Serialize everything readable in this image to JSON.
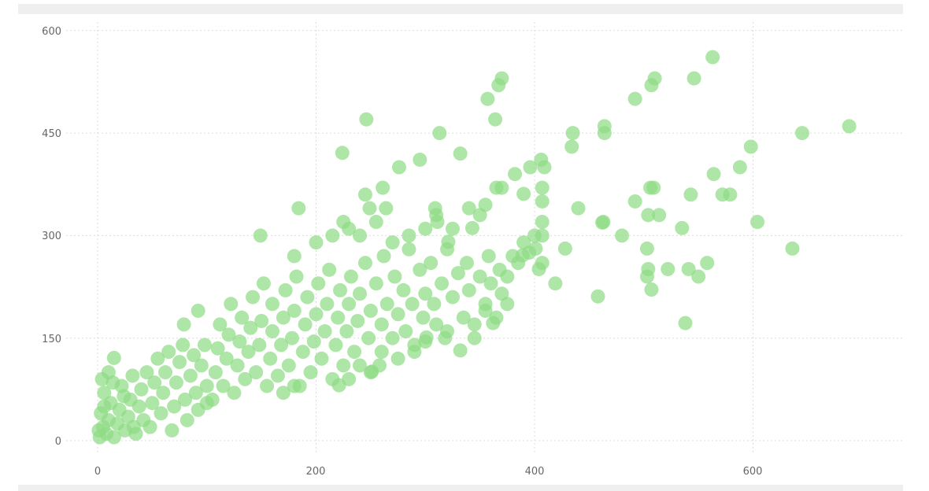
{
  "chart_data": {
    "type": "scatter",
    "title": "",
    "xlabel": "",
    "ylabel": "",
    "xlim": [
      0,
      730
    ],
    "ylim": [
      0,
      610
    ],
    "x_ticks": [
      "0",
      "200",
      "400",
      "600"
    ],
    "y_ticks": [
      "0",
      "150",
      "300",
      "450",
      "600"
    ],
    "grid": true,
    "point_color": "#8fdc85",
    "points": [
      [
        2,
        5
      ],
      [
        5,
        20
      ],
      [
        3,
        40
      ],
      [
        8,
        10
      ],
      [
        10,
        30
      ],
      [
        12,
        55
      ],
      [
        6,
        70
      ],
      [
        15,
        5
      ],
      [
        18,
        25
      ],
      [
        20,
        45
      ],
      [
        22,
        80
      ],
      [
        25,
        15
      ],
      [
        28,
        35
      ],
      [
        30,
        60
      ],
      [
        32,
        95
      ],
      [
        35,
        10
      ],
      [
        38,
        50
      ],
      [
        40,
        75
      ],
      [
        42,
        30
      ],
      [
        45,
        100
      ],
      [
        4,
        90
      ],
      [
        10,
        100
      ],
      [
        15,
        121
      ],
      [
        1,
        15
      ],
      [
        6,
        50
      ],
      [
        14,
        85
      ],
      [
        24,
        65
      ],
      [
        33,
        20
      ],
      [
        48,
        20
      ],
      [
        50,
        55
      ],
      [
        52,
        85
      ],
      [
        55,
        120
      ],
      [
        58,
        40
      ],
      [
        60,
        70
      ],
      [
        62,
        100
      ],
      [
        65,
        130
      ],
      [
        68,
        15
      ],
      [
        70,
        50
      ],
      [
        72,
        85
      ],
      [
        75,
        115
      ],
      [
        78,
        140
      ],
      [
        80,
        60
      ],
      [
        82,
        30
      ],
      [
        85,
        95
      ],
      [
        88,
        125
      ],
      [
        90,
        70
      ],
      [
        92,
        45
      ],
      [
        95,
        110
      ],
      [
        98,
        140
      ],
      [
        100,
        80
      ],
      [
        100,
        55
      ],
      [
        92,
        190
      ],
      [
        79,
        170
      ],
      [
        105,
        60
      ],
      [
        108,
        100
      ],
      [
        110,
        135
      ],
      [
        112,
        170
      ],
      [
        115,
        80
      ],
      [
        118,
        120
      ],
      [
        120,
        155
      ],
      [
        122,
        200
      ],
      [
        125,
        70
      ],
      [
        128,
        110
      ],
      [
        130,
        145
      ],
      [
        132,
        180
      ],
      [
        135,
        90
      ],
      [
        138,
        130
      ],
      [
        140,
        165
      ],
      [
        142,
        210
      ],
      [
        145,
        100
      ],
      [
        148,
        140
      ],
      [
        150,
        175
      ],
      [
        152,
        230
      ],
      [
        155,
        80
      ],
      [
        158,
        120
      ],
      [
        160,
        160
      ],
      [
        160,
        200
      ],
      [
        165,
        95
      ],
      [
        168,
        140
      ],
      [
        170,
        180
      ],
      [
        172,
        220
      ],
      [
        175,
        110
      ],
      [
        178,
        150
      ],
      [
        180,
        190
      ],
      [
        182,
        240
      ],
      [
        185,
        80
      ],
      [
        188,
        130
      ],
      [
        190,
        170
      ],
      [
        192,
        210
      ],
      [
        195,
        100
      ],
      [
        198,
        145
      ],
      [
        200,
        185
      ],
      [
        202,
        230
      ],
      [
        205,
        120
      ],
      [
        208,
        160
      ],
      [
        210,
        200
      ],
      [
        212,
        250
      ],
      [
        215,
        90
      ],
      [
        218,
        140
      ],
      [
        220,
        180
      ],
      [
        222,
        220
      ],
      [
        225,
        110
      ],
      [
        228,
        160
      ],
      [
        230,
        200
      ],
      [
        232,
        240
      ],
      [
        235,
        130
      ],
      [
        238,
        175
      ],
      [
        240,
        215
      ],
      [
        245,
        260
      ],
      [
        248,
        150
      ],
      [
        250,
        190
      ],
      [
        255,
        230
      ],
      [
        258,
        110
      ],
      [
        260,
        170
      ],
      [
        262,
        270
      ],
      [
        265,
        200
      ],
      [
        270,
        150
      ],
      [
        272,
        240
      ],
      [
        275,
        185
      ],
      [
        280,
        220
      ],
      [
        282,
        160
      ],
      [
        285,
        280
      ],
      [
        288,
        200
      ],
      [
        290,
        140
      ],
      [
        295,
        250
      ],
      [
        298,
        180
      ],
      [
        300,
        215
      ],
      [
        305,
        260
      ],
      [
        308,
        200
      ],
      [
        310,
        170
      ],
      [
        315,
        230
      ],
      [
        318,
        150
      ],
      [
        320,
        280
      ],
      [
        325,
        210
      ],
      [
        330,
        245
      ],
      [
        335,
        180
      ],
      [
        338,
        260
      ],
      [
        340,
        220
      ],
      [
        345,
        170
      ],
      [
        350,
        240
      ],
      [
        355,
        200
      ],
      [
        358,
        270
      ],
      [
        360,
        230
      ],
      [
        365,
        180
      ],
      [
        368,
        250
      ],
      [
        370,
        215
      ],
      [
        375,
        240
      ],
      [
        380,
        270
      ],
      [
        385,
        260
      ],
      [
        390,
        290
      ],
      [
        395,
        275
      ],
      [
        400,
        300
      ],
      [
        240,
        300
      ],
      [
        255,
        320
      ],
      [
        270,
        290
      ],
      [
        285,
        300
      ],
      [
        300,
        310
      ],
      [
        310,
        330
      ],
      [
        325,
        310
      ],
      [
        340,
        340
      ],
      [
        350,
        330
      ],
      [
        355,
        345
      ],
      [
        180,
        270
      ],
      [
        200,
        290
      ],
      [
        215,
        300
      ],
      [
        225,
        320
      ],
      [
        230,
        310
      ],
      [
        311,
        320
      ],
      [
        309,
        340
      ],
      [
        321,
        291
      ],
      [
        343,
        311
      ],
      [
        230,
        90
      ],
      [
        240,
        110
      ],
      [
        250,
        100
      ],
      [
        260,
        130
      ],
      [
        275,
        120
      ],
      [
        290,
        130
      ],
      [
        300,
        145
      ],
      [
        320,
        160
      ],
      [
        332,
        132
      ],
      [
        345,
        150
      ],
      [
        362,
        172
      ],
      [
        355,
        190
      ],
      [
        375,
        200
      ],
      [
        170,
        70
      ],
      [
        180,
        80
      ],
      [
        301,
        151
      ],
      [
        251,
        101
      ],
      [
        221,
        81
      ],
      [
        149,
        300
      ],
      [
        184,
        340
      ],
      [
        245,
        360
      ],
      [
        261,
        370
      ],
      [
        264,
        340
      ],
      [
        249,
        340
      ],
      [
        224,
        421
      ],
      [
        246,
        470
      ],
      [
        276,
        400
      ],
      [
        295,
        411
      ],
      [
        313,
        450
      ],
      [
        332,
        420
      ],
      [
        357,
        500
      ],
      [
        364,
        470
      ],
      [
        367,
        520
      ],
      [
        370,
        530
      ],
      [
        365,
        370
      ],
      [
        370,
        370
      ],
      [
        382,
        390
      ],
      [
        390,
        361
      ],
      [
        389,
        271
      ],
      [
        401,
        281
      ],
      [
        404,
        251
      ],
      [
        407,
        260
      ],
      [
        407,
        300
      ],
      [
        407,
        320
      ],
      [
        407,
        350
      ],
      [
        407,
        370
      ],
      [
        396,
        400
      ],
      [
        406,
        411
      ],
      [
        409,
        400
      ],
      [
        419,
        230
      ],
      [
        428,
        281
      ],
      [
        434,
        430
      ],
      [
        435,
        450
      ],
      [
        440,
        340
      ],
      [
        458,
        211
      ],
      [
        462,
        319
      ],
      [
        463,
        320
      ],
      [
        464,
        450
      ],
      [
        464,
        460
      ],
      [
        480,
        300
      ],
      [
        492,
        350
      ],
      [
        492,
        500
      ],
      [
        503,
        240
      ],
      [
        503,
        281
      ],
      [
        504,
        251
      ],
      [
        504,
        330
      ],
      [
        506,
        370
      ],
      [
        507,
        221
      ],
      [
        507,
        520
      ],
      [
        509,
        370
      ],
      [
        510,
        530
      ],
      [
        514,
        330
      ],
      [
        522,
        251
      ],
      [
        535,
        311
      ],
      [
        538,
        172
      ],
      [
        541,
        251
      ],
      [
        543,
        360
      ],
      [
        546,
        530
      ],
      [
        550,
        240
      ],
      [
        558,
        260
      ],
      [
        563,
        561
      ],
      [
        564,
        390
      ],
      [
        572,
        360
      ],
      [
        579,
        360
      ],
      [
        588,
        400
      ],
      [
        598,
        430
      ],
      [
        604,
        320
      ],
      [
        636,
        281
      ],
      [
        645,
        450
      ],
      [
        688,
        460
      ]
    ]
  }
}
